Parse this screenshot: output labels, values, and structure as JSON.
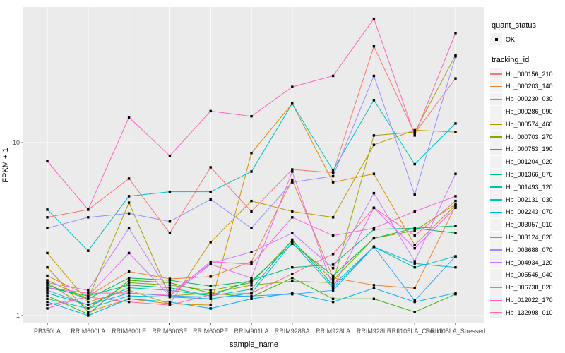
{
  "chart_data": {
    "type": "line",
    "title": "",
    "xlabel": "sample_name",
    "ylabel": "FPKM + 1",
    "y_scale": "log10",
    "y_tick_labels": [
      "1",
      "10"
    ],
    "y_tick_values": [
      1,
      10
    ],
    "y_minor_values": [
      3.162,
      31.62
    ],
    "ylim_log": [
      0.88,
      78
    ],
    "grid": "on",
    "legend_position": "right",
    "panel_background": "#EBEBEB",
    "grid_color": "#FFFFFF",
    "axis_text_color": "#4D4D4D",
    "point_color": "#000000",
    "categories": [
      "PB350LA",
      "RRIM600LA",
      "RRIM600LE",
      "RRIM600SE",
      "RRIM600PE",
      "RRIM901LA",
      "RRIM928BA",
      "RRIM928LA",
      "RRIM928LE",
      "RRII105LA_Control",
      "RRII105LA_Stressed"
    ],
    "series": [
      {
        "name": "Hb_000156_210",
        "color": "#F8766D",
        "values": [
          3.7,
          4.1,
          6.2,
          3.0,
          7.2,
          4.0,
          7.0,
          6.7,
          36,
          11.3,
          23.5
        ]
      },
      {
        "name": "Hb_000203_140",
        "color": "#EA8331",
        "values": [
          1.7,
          1.3,
          1.8,
          1.63,
          1.68,
          2.05,
          6.1,
          1.65,
          1.5,
          1.44,
          4.3
        ]
      },
      {
        "name": "Hb_000230_030",
        "color": "#D89000",
        "values": [
          1.9,
          1.05,
          1.25,
          1.17,
          1.15,
          8.7,
          16.8,
          5.9,
          6.6,
          2.56,
          4.35
        ]
      },
      {
        "name": "Hb_000286_090",
        "color": "#C09B00",
        "values": [
          2.3,
          1.2,
          1.4,
          1.17,
          2.66,
          4.6,
          4.0,
          3.7,
          9.7,
          11.8,
          11.5
        ]
      },
      {
        "name": "Hb_000574_460",
        "color": "#A3A500",
        "values": [
          1.6,
          1.25,
          4.5,
          1.3,
          1.35,
          1.5,
          1.58,
          1.55,
          11.0,
          11.5,
          32
        ]
      },
      {
        "name": "Hb_000703_270",
        "color": "#7CAE00",
        "values": [
          1.55,
          1.1,
          1.55,
          1.5,
          1.4,
          1.55,
          2.7,
          1.6,
          2.8,
          3.1,
          4.4
        ]
      },
      {
        "name": "Hb_000753_190",
        "color": "#39B600",
        "values": [
          1.3,
          1.02,
          1.6,
          1.55,
          1.35,
          1.28,
          1.65,
          1.25,
          1.25,
          1.05,
          1.33
        ]
      },
      {
        "name": "Hb_001204_020",
        "color": "#00BB4E",
        "values": [
          1.5,
          1.25,
          1.65,
          1.6,
          1.48,
          1.58,
          2.6,
          1.7,
          2.8,
          3.2,
          3.0
        ]
      },
      {
        "name": "Hb_001366_070",
        "color": "#00BF7D",
        "values": [
          1.45,
          1.3,
          1.5,
          1.45,
          1.3,
          1.6,
          1.9,
          1.97,
          3.15,
          3.2,
          3.3
        ]
      },
      {
        "name": "Hb_001493_120",
        "color": "#00C1A3",
        "values": [
          1.35,
          1.15,
          1.45,
          1.4,
          1.3,
          1.42,
          2.75,
          1.5,
          2.5,
          1.9,
          2.2
        ]
      },
      {
        "name": "Hb_002131_030",
        "color": "#00BFC4",
        "values": [
          4.1,
          2.37,
          4.9,
          5.2,
          5.2,
          6.8,
          16.8,
          6.9,
          17.6,
          7.5,
          12.9
        ]
      },
      {
        "name": "Hb_002243_070",
        "color": "#00BAE0",
        "values": [
          1.25,
          1.1,
          1.3,
          1.28,
          1.25,
          1.35,
          2.65,
          1.45,
          2.5,
          2.0,
          1.9
        ]
      },
      {
        "name": "Hb_003057_010",
        "color": "#00B0F6",
        "values": [
          1.2,
          1.0,
          1.25,
          1.2,
          1.1,
          1.25,
          1.35,
          1.2,
          1.44,
          1.2,
          1.35
        ]
      },
      {
        "name": "Hb_003124_020",
        "color": "#35A2FF",
        "values": [
          1.4,
          1.15,
          1.35,
          1.3,
          1.28,
          1.3,
          1.33,
          1.4,
          2.5,
          1.22,
          2.2
        ]
      },
      {
        "name": "Hb_003688_070",
        "color": "#9590FF",
        "values": [
          3.2,
          3.7,
          3.9,
          3.5,
          4.7,
          3.2,
          5.9,
          6.4,
          24.3,
          5.0,
          31.5
        ]
      },
      {
        "name": "Hb_004934_120",
        "color": "#C77CFF",
        "values": [
          1.55,
          1.4,
          3.2,
          1.35,
          2.0,
          2.33,
          3.0,
          1.88,
          5.1,
          2.06,
          6.6
        ]
      },
      {
        "name": "Hb_005545_040",
        "color": "#E76BF3",
        "values": [
          1.1,
          1.3,
          2.3,
          1.3,
          1.98,
          1.65,
          6.8,
          1.45,
          4.2,
          2.45,
          4.2
        ]
      },
      {
        "name": "Hb_006738_020",
        "color": "#FA62DB",
        "values": [
          1.45,
          1.35,
          1.35,
          1.31,
          2.05,
          1.98,
          3.7,
          2.9,
          3.2,
          4.0,
          4.9
        ]
      },
      {
        "name": "Hb_012022_170",
        "color": "#FF62BC",
        "values": [
          7.8,
          4.1,
          14.0,
          8.4,
          15.2,
          14.2,
          21,
          24.3,
          52,
          11.0,
          43
        ]
      },
      {
        "name": "Hb_132998_010",
        "color": "#FF6A98",
        "values": [
          1.15,
          1.28,
          1.2,
          1.15,
          1.32,
          1.35,
          1.74,
          2.27,
          4.2,
          2.9,
          4.6
        ]
      }
    ]
  },
  "legend": {
    "quant_status_title": "quant_status",
    "quant_status_item": "OK",
    "tracking_title": "tracking_id"
  }
}
